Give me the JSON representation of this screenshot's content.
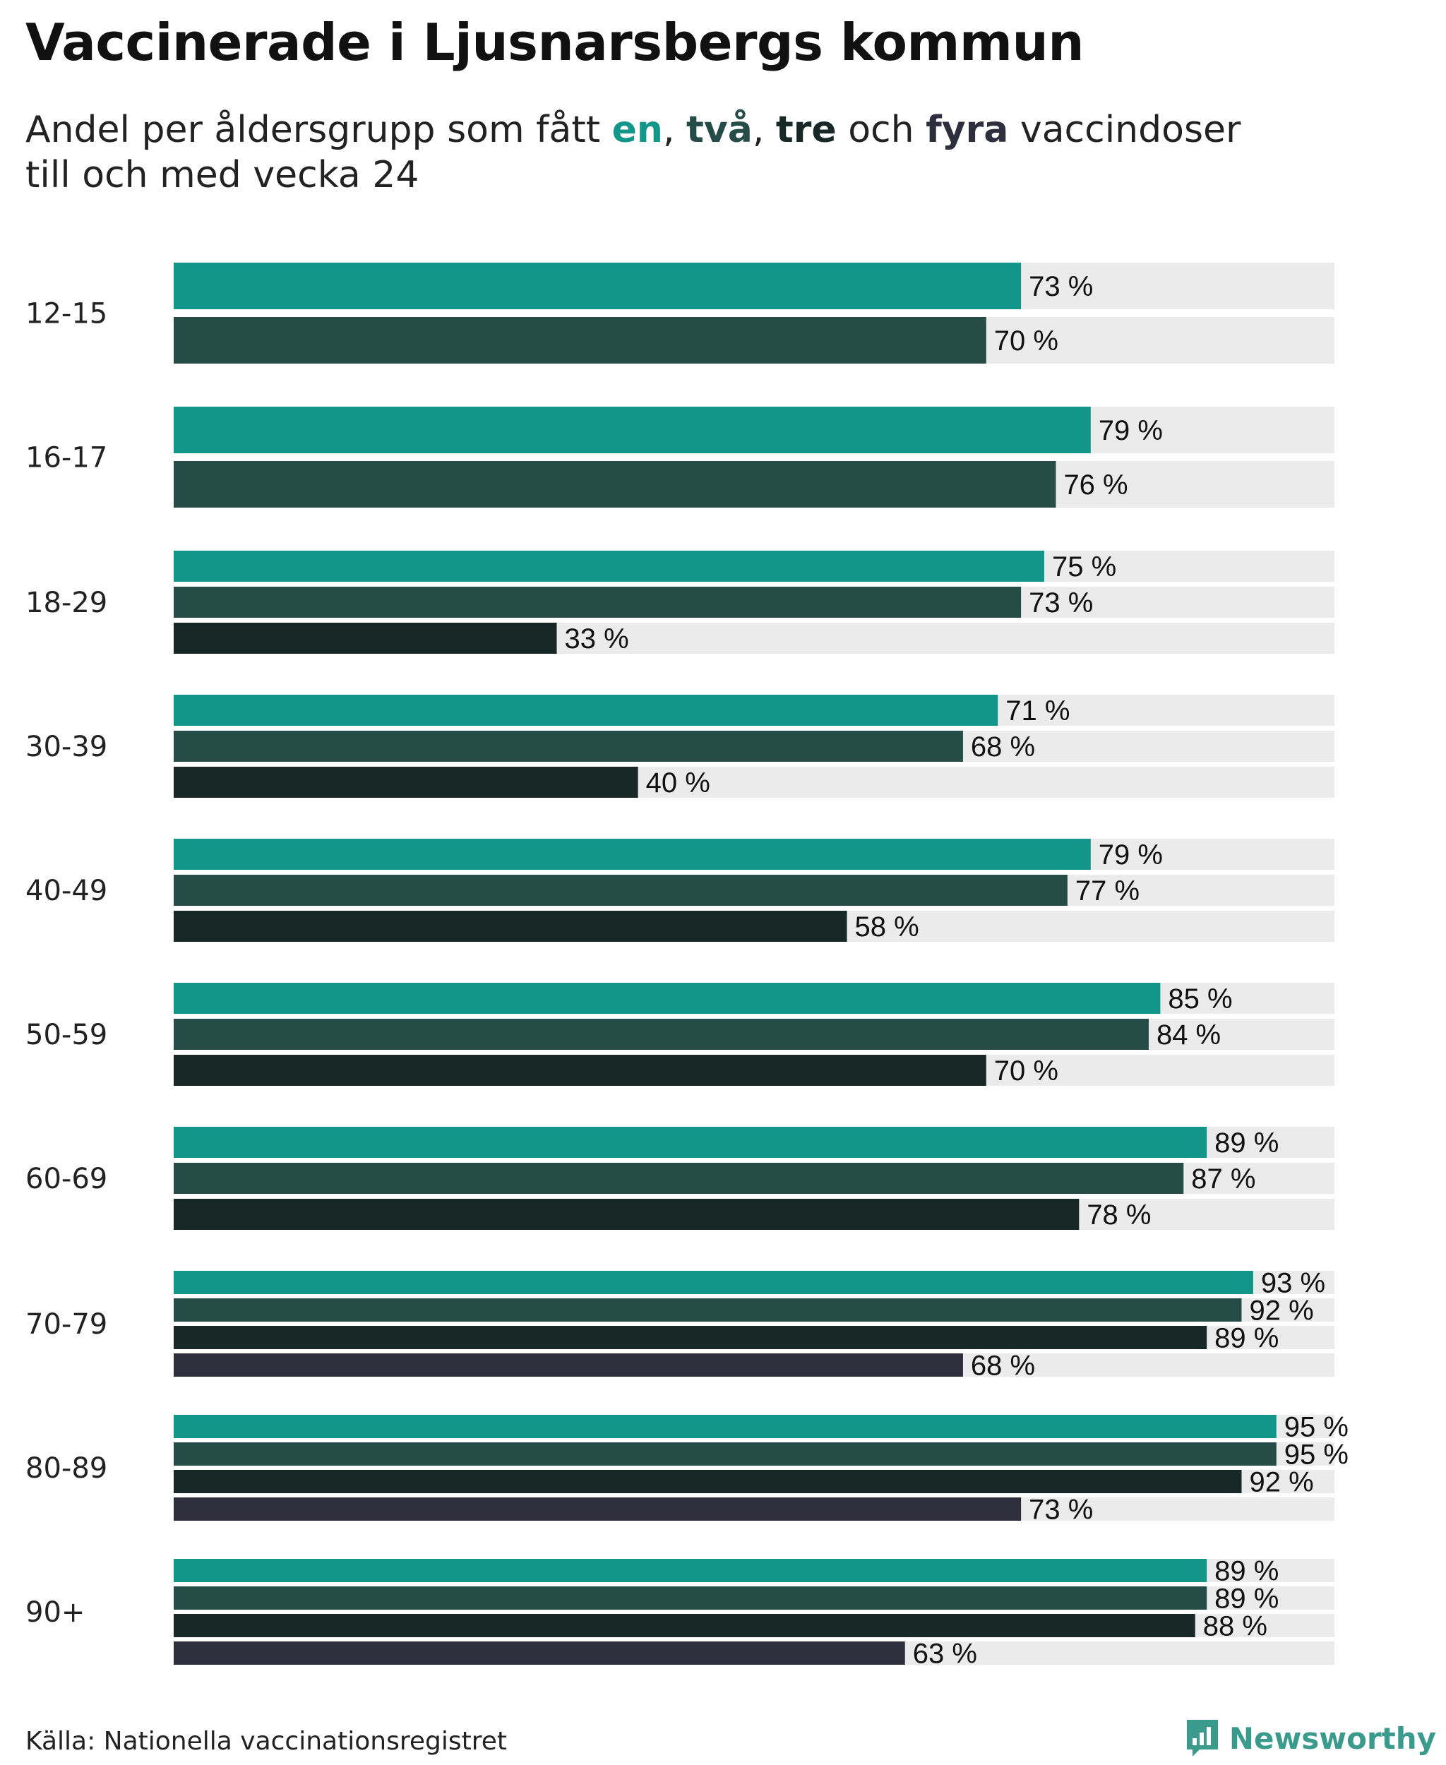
{
  "title": "Vaccinerade i Ljusnarsbergs kommun",
  "subtitle": {
    "prefix": "Andel per åldersgrupp som fått ",
    "dose1": "en",
    "sep1": ", ",
    "dose2": "två",
    "sep2": ", ",
    "dose3": "tre",
    "sep3": " och ",
    "dose4": "fyra",
    "suffix": " vaccindoser",
    "line2": "till och med vecka 24"
  },
  "colors": {
    "dose1": "#13968a",
    "dose2": "#264c48",
    "dose3": "#172827",
    "dose4": "#2f2e3c",
    "track": "#ebebeb",
    "brand": "#3a9a8c"
  },
  "chart_data": {
    "type": "bar",
    "orientation": "horizontal",
    "xlim": [
      0,
      100
    ],
    "value_suffix": " %",
    "series_colors": [
      "#13968a",
      "#264c48",
      "#172827",
      "#2f2e3c"
    ],
    "groups": [
      {
        "label": "12-15",
        "values": [
          73,
          70
        ]
      },
      {
        "label": "16-17",
        "values": [
          79,
          76
        ]
      },
      {
        "label": "18-29",
        "values": [
          75,
          73,
          33
        ]
      },
      {
        "label": "30-39",
        "values": [
          71,
          68,
          40
        ]
      },
      {
        "label": "40-49",
        "values": [
          79,
          77,
          58
        ]
      },
      {
        "label": "50-59",
        "values": [
          85,
          84,
          70
        ]
      },
      {
        "label": "60-69",
        "values": [
          89,
          87,
          78
        ]
      },
      {
        "label": "70-79",
        "values": [
          93,
          92,
          89,
          68
        ]
      },
      {
        "label": "80-89",
        "values": [
          95,
          95,
          92,
          73
        ]
      },
      {
        "label": "90+",
        "values": [
          89,
          89,
          88,
          63
        ]
      }
    ]
  },
  "source": "Källa: Nationella vaccinationsregistret",
  "brand": {
    "name": "Newsworthy",
    "icon": "newsworthy-logo-icon"
  }
}
